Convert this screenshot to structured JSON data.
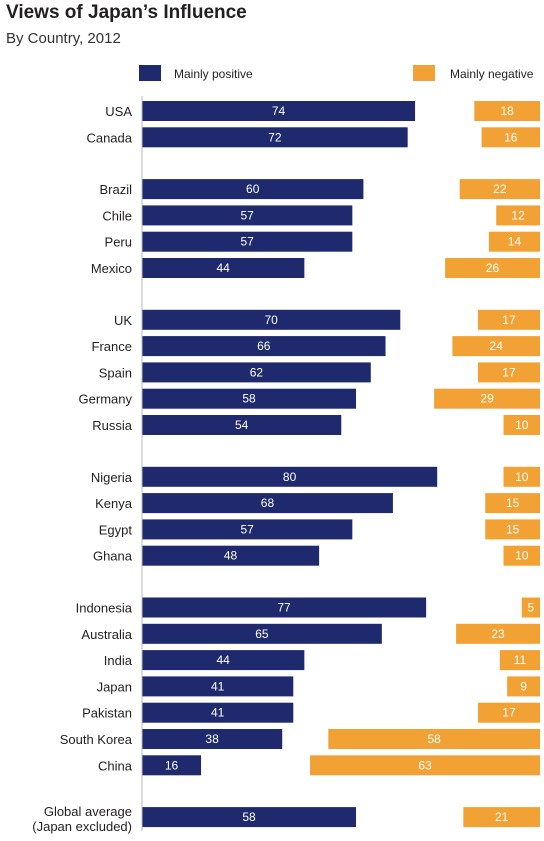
{
  "title": "Views of Japan’s Influence",
  "subtitle": "By Country, 2012",
  "colors": {
    "positive": "#1f2a6e",
    "negative": "#f2a234",
    "divider": "#b8b8b8"
  },
  "chart_data": {
    "type": "bar",
    "orientation": "horizontal",
    "title": "Views of Japan’s Influence",
    "subtitle": "By Country, 2012",
    "legend": [
      "Mainly positive",
      "Mainly negative"
    ],
    "legend_position": "top",
    "groups": [
      {
        "categories": [
          {
            "label": [
              "USA"
            ],
            "positive": 74,
            "negative": 18
          },
          {
            "label": [
              "Canada"
            ],
            "positive": 72,
            "negative": 16
          }
        ]
      },
      {
        "categories": [
          {
            "label": [
              "Brazil"
            ],
            "positive": 60,
            "negative": 22
          },
          {
            "label": [
              "Chile"
            ],
            "positive": 57,
            "negative": 12
          },
          {
            "label": [
              "Peru"
            ],
            "positive": 57,
            "negative": 14
          },
          {
            "label": [
              "Mexico"
            ],
            "positive": 44,
            "negative": 26
          }
        ]
      },
      {
        "categories": [
          {
            "label": [
              "UK"
            ],
            "positive": 70,
            "negative": 17
          },
          {
            "label": [
              "France"
            ],
            "positive": 66,
            "negative": 24
          },
          {
            "label": [
              "Spain"
            ],
            "positive": 62,
            "negative": 17
          },
          {
            "label": [
              "Germany"
            ],
            "positive": 58,
            "negative": 29
          },
          {
            "label": [
              "Russia"
            ],
            "positive": 54,
            "negative": 10
          }
        ]
      },
      {
        "categories": [
          {
            "label": [
              "Nigeria"
            ],
            "positive": 80,
            "negative": 10
          },
          {
            "label": [
              "Kenya"
            ],
            "positive": 68,
            "negative": 15
          },
          {
            "label": [
              "Egypt"
            ],
            "positive": 57,
            "negative": 15
          },
          {
            "label": [
              "Ghana"
            ],
            "positive": 48,
            "negative": 10
          }
        ]
      },
      {
        "categories": [
          {
            "label": [
              "Indonesia"
            ],
            "positive": 77,
            "negative": 5
          },
          {
            "label": [
              "Australia"
            ],
            "positive": 65,
            "negative": 23
          },
          {
            "label": [
              "India"
            ],
            "positive": 44,
            "negative": 11
          },
          {
            "label": [
              "Japan"
            ],
            "positive": 41,
            "negative": 9
          },
          {
            "label": [
              "Pakistan"
            ],
            "positive": 41,
            "negative": 17
          },
          {
            "label": [
              "South Korea"
            ],
            "positive": 38,
            "negative": 58
          },
          {
            "label": [
              "China"
            ],
            "positive": 16,
            "negative": 63
          }
        ]
      },
      {
        "categories": [
          {
            "label": [
              "Global average",
              "(Japan excluded)"
            ],
            "positive": 58,
            "negative": 21
          }
        ]
      }
    ]
  }
}
